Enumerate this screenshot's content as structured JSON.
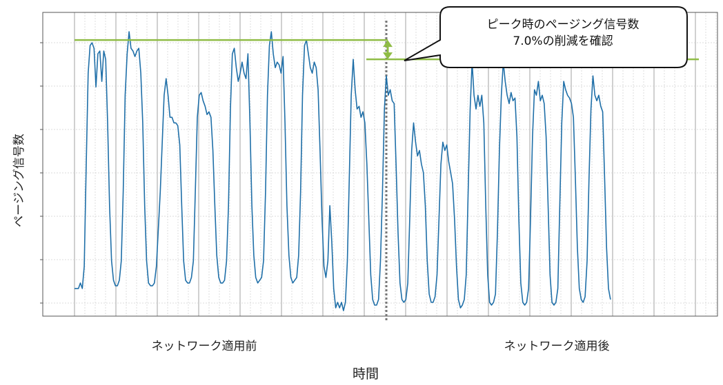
{
  "chart_data": {
    "type": "line",
    "title": "",
    "xlabel": "時間",
    "ylabel": "ページング信号数",
    "period_labels": [
      "ネットワーク適用前",
      "ネットワーク適用後"
    ],
    "annotation": {
      "line1": "ピーク時のページング信号数",
      "line2": "7.0%の削減を確認",
      "peak_before": 1.0,
      "peak_after": 0.93,
      "reduction_percent": 7.0
    },
    "grid": true,
    "legend": "none",
    "x_range": [
      0,
      16
    ],
    "ylim": [
      0,
      1.1
    ],
    "divider_x": 8.0,
    "series": [
      {
        "values_note_free": true,
        "points": [
          [
            0.0,
            0.1
          ],
          [
            0.1,
            0.1
          ],
          [
            0.15,
            0.12
          ],
          [
            0.2,
            0.1
          ],
          [
            0.25,
            0.18
          ],
          [
            0.3,
            0.55
          ],
          [
            0.35,
            0.88
          ],
          [
            0.4,
            0.98
          ],
          [
            0.45,
            0.99
          ],
          [
            0.5,
            0.97
          ],
          [
            0.55,
            0.83
          ],
          [
            0.6,
            0.95
          ],
          [
            0.65,
            0.96
          ],
          [
            0.7,
            0.85
          ],
          [
            0.75,
            0.96
          ],
          [
            0.8,
            0.93
          ],
          [
            0.85,
            0.7
          ],
          [
            0.9,
            0.4
          ],
          [
            0.95,
            0.2
          ],
          [
            1.0,
            0.13
          ],
          [
            1.05,
            0.11
          ],
          [
            1.1,
            0.11
          ],
          [
            1.15,
            0.13
          ],
          [
            1.2,
            0.2
          ],
          [
            1.25,
            0.45
          ],
          [
            1.3,
            0.8
          ],
          [
            1.35,
            0.95
          ],
          [
            1.4,
            1.03
          ],
          [
            1.45,
            0.97
          ],
          [
            1.5,
            0.96
          ],
          [
            1.55,
            0.94
          ],
          [
            1.6,
            0.96
          ],
          [
            1.65,
            0.97
          ],
          [
            1.7,
            0.88
          ],
          [
            1.75,
            0.7
          ],
          [
            1.8,
            0.4
          ],
          [
            1.85,
            0.2
          ],
          [
            1.9,
            0.12
          ],
          [
            1.95,
            0.11
          ],
          [
            2.0,
            0.11
          ],
          [
            2.05,
            0.12
          ],
          [
            2.1,
            0.18
          ],
          [
            2.2,
            0.45
          ],
          [
            2.3,
            0.8
          ],
          [
            2.35,
            0.86
          ],
          [
            2.4,
            0.8
          ],
          [
            2.45,
            0.72
          ],
          [
            2.5,
            0.72
          ],
          [
            2.55,
            0.7
          ],
          [
            2.6,
            0.7
          ],
          [
            2.65,
            0.69
          ],
          [
            2.7,
            0.62
          ],
          [
            2.75,
            0.4
          ],
          [
            2.8,
            0.2
          ],
          [
            2.85,
            0.13
          ],
          [
            2.9,
            0.12
          ],
          [
            2.95,
            0.12
          ],
          [
            3.0,
            0.14
          ],
          [
            3.05,
            0.2
          ],
          [
            3.1,
            0.45
          ],
          [
            3.15,
            0.72
          ],
          [
            3.2,
            0.8
          ],
          [
            3.25,
            0.81
          ],
          [
            3.3,
            0.78
          ],
          [
            3.35,
            0.76
          ],
          [
            3.4,
            0.73
          ],
          [
            3.45,
            0.74
          ],
          [
            3.5,
            0.72
          ],
          [
            3.55,
            0.6
          ],
          [
            3.6,
            0.4
          ],
          [
            3.65,
            0.22
          ],
          [
            3.7,
            0.14
          ],
          [
            3.75,
            0.12
          ],
          [
            3.8,
            0.12
          ],
          [
            3.85,
            0.13
          ],
          [
            3.9,
            0.2
          ],
          [
            3.95,
            0.4
          ],
          [
            4.0,
            0.75
          ],
          [
            4.05,
            0.95
          ],
          [
            4.1,
            0.97
          ],
          [
            4.15,
            0.9
          ],
          [
            4.2,
            0.85
          ],
          [
            4.25,
            0.88
          ],
          [
            4.3,
            0.92
          ],
          [
            4.35,
            0.88
          ],
          [
            4.4,
            0.86
          ],
          [
            4.45,
            0.95
          ],
          [
            4.5,
            0.7
          ],
          [
            4.55,
            0.4
          ],
          [
            4.6,
            0.22
          ],
          [
            4.65,
            0.14
          ],
          [
            4.7,
            0.12
          ],
          [
            4.75,
            0.13
          ],
          [
            4.8,
            0.14
          ],
          [
            4.85,
            0.2
          ],
          [
            4.9,
            0.45
          ],
          [
            4.95,
            0.8
          ],
          [
            5.0,
            0.98
          ],
          [
            5.05,
            1.03
          ],
          [
            5.1,
            0.95
          ],
          [
            5.15,
            0.9
          ],
          [
            5.2,
            0.92
          ],
          [
            5.25,
            0.91
          ],
          [
            5.3,
            0.88
          ],
          [
            5.35,
            0.94
          ],
          [
            5.4,
            0.7
          ],
          [
            5.45,
            0.4
          ],
          [
            5.5,
            0.22
          ],
          [
            5.55,
            0.14
          ],
          [
            5.6,
            0.12
          ],
          [
            5.65,
            0.13
          ],
          [
            5.7,
            0.14
          ],
          [
            5.75,
            0.22
          ],
          [
            5.8,
            0.45
          ],
          [
            5.85,
            0.8
          ],
          [
            5.9,
            0.98
          ],
          [
            5.95,
            1.0
          ],
          [
            6.0,
            0.95
          ],
          [
            6.05,
            0.9
          ],
          [
            6.1,
            0.88
          ],
          [
            6.15,
            0.92
          ],
          [
            6.2,
            0.9
          ],
          [
            6.25,
            0.82
          ],
          [
            6.3,
            0.6
          ],
          [
            6.35,
            0.35
          ],
          [
            6.4,
            0.18
          ],
          [
            6.45,
            0.14
          ],
          [
            6.5,
            0.2
          ],
          [
            6.55,
            0.4
          ],
          [
            6.6,
            0.27
          ],
          [
            6.65,
            0.1
          ],
          [
            6.7,
            0.03
          ],
          [
            6.75,
            0.05
          ],
          [
            6.8,
            0.03
          ],
          [
            6.85,
            0.05
          ],
          [
            6.9,
            0.02
          ],
          [
            6.95,
            0.05
          ],
          [
            7.0,
            0.2
          ],
          [
            7.05,
            0.5
          ],
          [
            7.1,
            0.8
          ],
          [
            7.15,
            0.93
          ],
          [
            7.2,
            0.82
          ],
          [
            7.25,
            0.75
          ],
          [
            7.3,
            0.76
          ],
          [
            7.35,
            0.72
          ],
          [
            7.4,
            0.74
          ],
          [
            7.45,
            0.7
          ],
          [
            7.5,
            0.55
          ],
          [
            7.55,
            0.35
          ],
          [
            7.6,
            0.15
          ],
          [
            7.65,
            0.06
          ],
          [
            7.7,
            0.04
          ],
          [
            7.75,
            0.04
          ],
          [
            7.8,
            0.06
          ],
          [
            7.85,
            0.2
          ],
          [
            7.9,
            0.45
          ],
          [
            7.95,
            0.75
          ],
          [
            8.0,
            0.87
          ],
          [
            8.05,
            0.8
          ],
          [
            8.1,
            0.82
          ],
          [
            8.15,
            0.78
          ],
          [
            8.2,
            0.77
          ],
          [
            8.25,
            0.55
          ],
          [
            8.3,
            0.3
          ],
          [
            8.35,
            0.12
          ],
          [
            8.4,
            0.06
          ],
          [
            8.45,
            0.05
          ],
          [
            8.5,
            0.06
          ],
          [
            8.55,
            0.12
          ],
          [
            8.6,
            0.35
          ],
          [
            8.65,
            0.6
          ],
          [
            8.7,
            0.7
          ],
          [
            8.75,
            0.63
          ],
          [
            8.8,
            0.58
          ],
          [
            8.85,
            0.6
          ],
          [
            8.9,
            0.55
          ],
          [
            8.95,
            0.52
          ],
          [
            9.0,
            0.4
          ],
          [
            9.05,
            0.2
          ],
          [
            9.1,
            0.08
          ],
          [
            9.15,
            0.05
          ],
          [
            9.2,
            0.05
          ],
          [
            9.25,
            0.07
          ],
          [
            9.3,
            0.15
          ],
          [
            9.35,
            0.35
          ],
          [
            9.4,
            0.55
          ],
          [
            9.45,
            0.63
          ],
          [
            9.5,
            0.6
          ],
          [
            9.55,
            0.62
          ],
          [
            9.6,
            0.56
          ],
          [
            9.65,
            0.52
          ],
          [
            9.7,
            0.48
          ],
          [
            9.75,
            0.35
          ],
          [
            9.8,
            0.18
          ],
          [
            9.85,
            0.06
          ],
          [
            9.9,
            0.03
          ],
          [
            9.95,
            0.04
          ],
          [
            10.0,
            0.06
          ],
          [
            10.05,
            0.15
          ],
          [
            10.1,
            0.45
          ],
          [
            10.15,
            0.75
          ],
          [
            10.2,
            0.92
          ],
          [
            10.25,
            0.8
          ],
          [
            10.3,
            0.75
          ],
          [
            10.35,
            0.8
          ],
          [
            10.4,
            0.76
          ],
          [
            10.45,
            0.8
          ],
          [
            10.5,
            0.7
          ],
          [
            10.55,
            0.4
          ],
          [
            10.6,
            0.15
          ],
          [
            10.65,
            0.05
          ],
          [
            10.7,
            0.04
          ],
          [
            10.75,
            0.05
          ],
          [
            10.8,
            0.08
          ],
          [
            10.85,
            0.3
          ],
          [
            10.9,
            0.6
          ],
          [
            10.95,
            0.8
          ],
          [
            11.0,
            0.92
          ],
          [
            11.05,
            0.85
          ],
          [
            11.1,
            0.8
          ],
          [
            11.15,
            0.77
          ],
          [
            11.2,
            0.81
          ],
          [
            11.25,
            0.78
          ],
          [
            11.3,
            0.79
          ],
          [
            11.35,
            0.65
          ],
          [
            11.4,
            0.35
          ],
          [
            11.45,
            0.12
          ],
          [
            11.5,
            0.05
          ],
          [
            11.55,
            0.04
          ],
          [
            11.6,
            0.05
          ],
          [
            11.65,
            0.1
          ],
          [
            11.7,
            0.35
          ],
          [
            11.75,
            0.65
          ],
          [
            11.8,
            0.82
          ],
          [
            11.85,
            0.8
          ],
          [
            11.9,
            0.85
          ],
          [
            11.95,
            0.78
          ],
          [
            12.0,
            0.8
          ],
          [
            12.05,
            0.77
          ],
          [
            12.1,
            0.65
          ],
          [
            12.15,
            0.4
          ],
          [
            12.2,
            0.15
          ],
          [
            12.25,
            0.05
          ],
          [
            12.3,
            0.04
          ],
          [
            12.35,
            0.05
          ],
          [
            12.4,
            0.1
          ],
          [
            12.45,
            0.4
          ],
          [
            12.5,
            0.7
          ],
          [
            12.55,
            0.85
          ],
          [
            12.6,
            0.82
          ],
          [
            12.65,
            0.8
          ],
          [
            12.7,
            0.79
          ],
          [
            12.75,
            0.77
          ],
          [
            12.8,
            0.72
          ],
          [
            12.85,
            0.5
          ],
          [
            12.9,
            0.25
          ],
          [
            12.95,
            0.1
          ],
          [
            13.0,
            0.06
          ],
          [
            13.05,
            0.05
          ],
          [
            13.1,
            0.07
          ],
          [
            13.15,
            0.2
          ],
          [
            13.2,
            0.5
          ],
          [
            13.25,
            0.75
          ],
          [
            13.3,
            0.87
          ],
          [
            13.35,
            0.8
          ],
          [
            13.4,
            0.78
          ],
          [
            13.45,
            0.8
          ],
          [
            13.5,
            0.76
          ],
          [
            13.55,
            0.74
          ],
          [
            13.6,
            0.5
          ],
          [
            13.65,
            0.25
          ],
          [
            13.7,
            0.1
          ],
          [
            13.75,
            0.06
          ]
        ]
      }
    ]
  }
}
